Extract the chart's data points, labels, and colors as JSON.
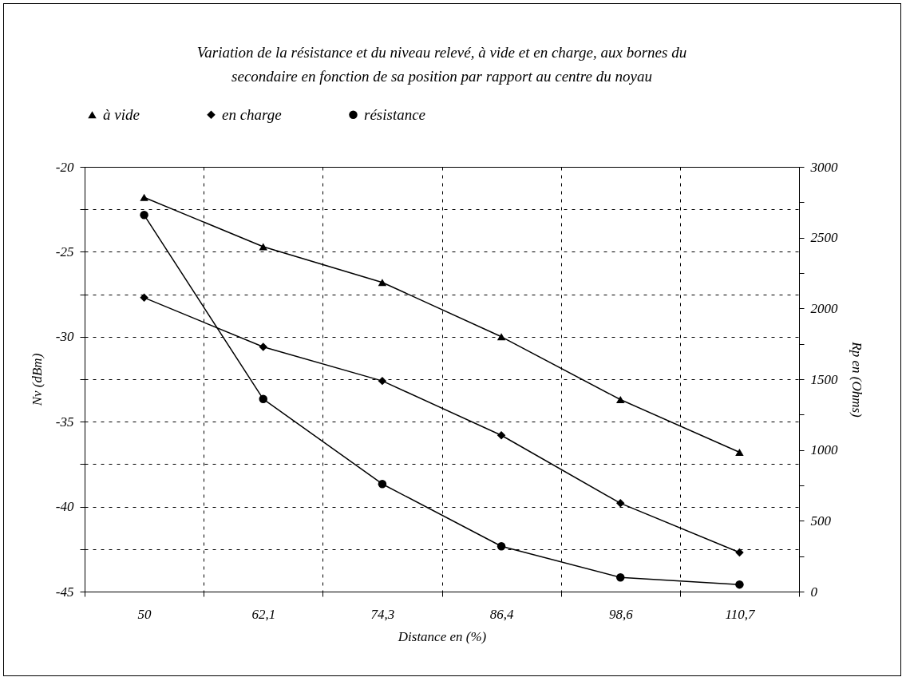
{
  "chart_data": {
    "type": "line",
    "title": "Variation de la résistance et du niveau relevé, à vide et en charge, aux bornes du secondaire en fonction de sa position par rapport au centre du noyau",
    "xlabel": "Distance en (%)",
    "ylabel": "Nv (dBm)",
    "y2label": "Rp en (Ohms)",
    "categories": [
      "50",
      "62,1",
      "74,3",
      "86,4",
      "98,6",
      "110,7"
    ],
    "series": [
      {
        "name": "à vide",
        "color": "#000000",
        "marker": "triangle",
        "values": [
          -21.8,
          -24.7,
          -26.8,
          -30.0,
          -33.7,
          -36.8
        ]
      },
      {
        "name": "en charge",
        "color": "#000000",
        "marker": "diamond",
        "values": [
          -27.7,
          -30.6,
          -32.6,
          -35.8,
          -39.8,
          -42.7
        ]
      },
      {
        "name": "résistance",
        "color": "#000000",
        "marker": "circle",
        "axis": "y2",
        "values": [
          2660,
          1360,
          760,
          320,
          100,
          50
        ]
      }
    ],
    "ylim": [
      -45,
      -20
    ],
    "yticks": [
      -45,
      {
        "value": -42.5,
        "label": null
      },
      -40,
      {
        "value": -37.5,
        "label": null
      },
      -35,
      {
        "value": -32.5,
        "label": null
      },
      -30,
      {
        "value": -27.5,
        "label": null
      },
      -25,
      {
        "value": -22.5,
        "label": null
      },
      -20
    ],
    "y2lim": [
      0,
      3000
    ],
    "y2ticks": [
      0,
      {
        "value": 250,
        "label": null
      },
      500,
      {
        "value": 750,
        "label": null
      },
      1000,
      {
        "value": 1250,
        "label": null
      },
      1500,
      {
        "value": 1750,
        "label": null
      },
      2000,
      {
        "value": 2250,
        "label": null
      },
      2500,
      {
        "value": 2750,
        "label": null
      },
      3000
    ],
    "grid": true,
    "legend": "top",
    "line_style": "solid"
  }
}
